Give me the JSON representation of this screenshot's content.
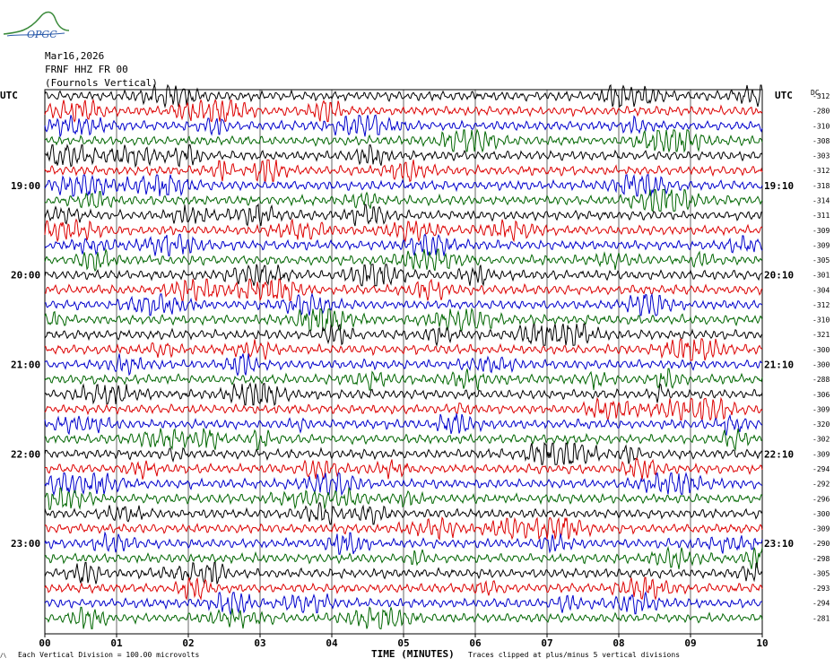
{
  "header": {
    "logo_text": "OPGC",
    "date": "Mar16,2026",
    "station": "FRNF HHZ FR 00",
    "location": "(Fournols Vertical)"
  },
  "axis": {
    "left_utc_label": "UTC",
    "right_utc_label": "UTC",
    "dc_label": "DC",
    "xlabel": "TIME (MINUTES)",
    "footer_left": "Each Vertical Division =  100.00 microvolts",
    "footer_right": "Traces clipped at plus/minus 5 vertical divisions",
    "corner_mark": "/\\"
  },
  "colors": {
    "cycle": [
      "#000000",
      "#dd0000",
      "#0000cc",
      "#006600"
    ],
    "grid": "#000000"
  },
  "chart_data": {
    "type": "helicorder",
    "xlim": [
      0,
      10
    ],
    "x_ticks": [
      "00",
      "01",
      "02",
      "03",
      "04",
      "05",
      "06",
      "07",
      "08",
      "09",
      "10"
    ],
    "rows_per_hour": 6,
    "left_time_labels": [
      {
        "row": 6,
        "label": "19:00"
      },
      {
        "row": 12,
        "label": "20:00"
      },
      {
        "row": 18,
        "label": "21:00"
      },
      {
        "row": 24,
        "label": "22:00"
      },
      {
        "row": 30,
        "label": "23:00"
      }
    ],
    "right_time_labels": [
      {
        "row": 6,
        "label": "19:10"
      },
      {
        "row": 12,
        "label": "20:10"
      },
      {
        "row": 18,
        "label": "21:10"
      },
      {
        "row": 24,
        "label": "22:10"
      },
      {
        "row": 30,
        "label": "23:10"
      }
    ],
    "dc_offsets": [
      -312,
      -280,
      -310,
      -308,
      -303,
      -312,
      -318,
      -314,
      -311,
      -309,
      -309,
      -305,
      -301,
      -304,
      -312,
      -310,
      -321,
      -300,
      -300,
      -288,
      -306,
      -309,
      -320,
      -302,
      -309,
      -294,
      -292,
      -296,
      -300,
      -309,
      -290,
      -298,
      -305,
      -293,
      -294,
      -281
    ]
  }
}
